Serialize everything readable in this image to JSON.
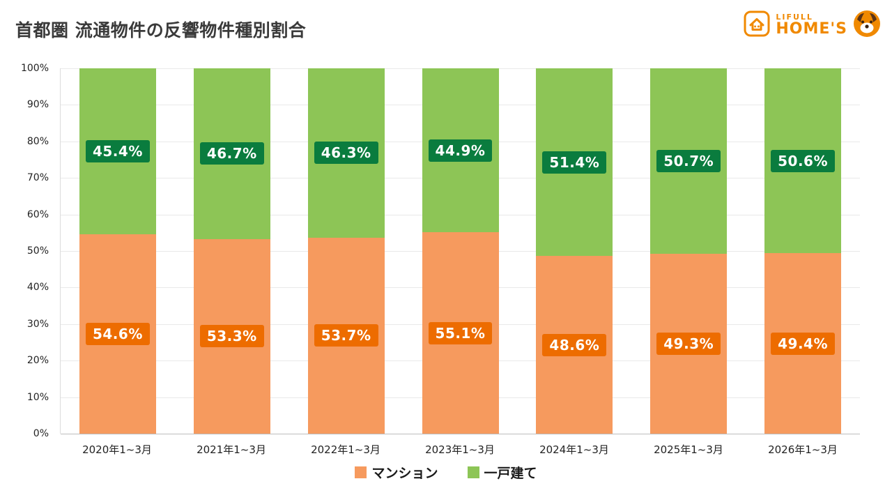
{
  "header": {
    "title": "首都圏 流通物件の反響物件種別割合",
    "logo": {
      "brand_top": "LIFULL",
      "brand_bottom": "HOME'S",
      "brand_color": "#f08900"
    }
  },
  "chart_data": {
    "type": "bar",
    "stacked": true,
    "title": "首都圏 流通物件の反響物件種別割合",
    "categories": [
      "2020年1~3月",
      "2021年1~3月",
      "2022年1~3月",
      "2023年1~3月",
      "2024年1~3月",
      "2025年1~3月",
      "2026年1~3月"
    ],
    "series": [
      {
        "key": "mansion",
        "name": "マンション",
        "color": "#F69A5E",
        "label_bg": "#ED6C00",
        "values": [
          54.6,
          53.3,
          53.7,
          55.1,
          48.6,
          49.3,
          49.4
        ]
      },
      {
        "key": "kodate",
        "name": "一戸建て",
        "color": "#8DC556",
        "label_bg": "#0A7C3E",
        "values": [
          45.4,
          46.7,
          46.3,
          44.9,
          51.4,
          50.7,
          50.6
        ]
      }
    ],
    "ylim": [
      0,
      100
    ],
    "yticks": [
      "0%",
      "10%",
      "20%",
      "30%",
      "40%",
      "50%",
      "60%",
      "70%",
      "80%",
      "90%",
      "100%"
    ],
    "grid": true,
    "legend_position": "bottom"
  }
}
